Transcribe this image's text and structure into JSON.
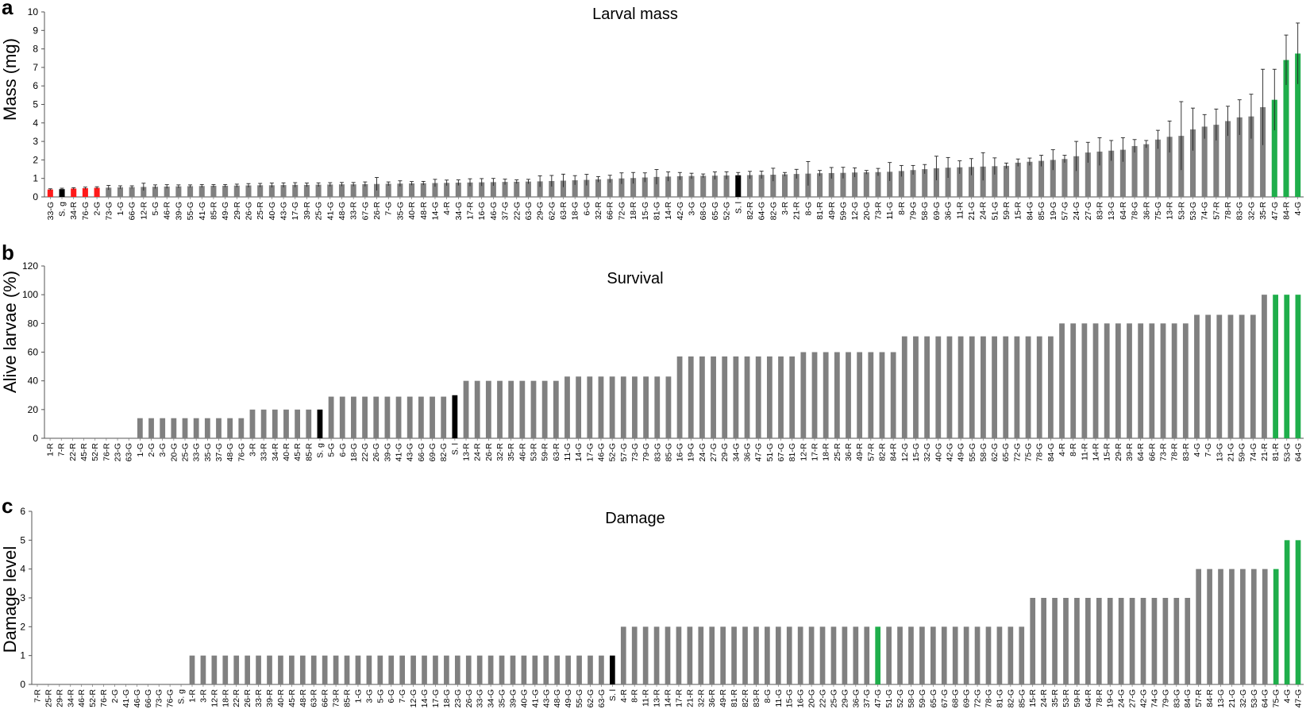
{
  "colors": {
    "default": "#808080",
    "red": "#ff1a1a",
    "black": "#000000",
    "green": "#1fae4b"
  },
  "panels": [
    {
      "letter": "a",
      "title": "Larval mass",
      "ylabel": "Mass (mg)",
      "chart_data": {
        "type": "bar",
        "title": "Larval mass",
        "ylabel": "Mass (mg)",
        "xlabel": "",
        "ylim": [
          0,
          10
        ],
        "yticks": [
          0,
          1,
          2,
          3,
          4,
          5,
          6,
          7,
          8,
          9,
          10
        ],
        "error_bars": true,
        "highlight": {
          "red": [
            "33-G",
            "34-R",
            "76-G",
            "2-G"
          ],
          "black": [
            "S. g",
            "S. l"
          ],
          "green": [
            "47-G",
            "84-R",
            "4-G"
          ]
        },
        "categories": [
          "33-G",
          "S. g",
          "34-R",
          "76-G",
          "2-G",
          "73-G",
          "1-G",
          "66-G",
          "12-R",
          "5-G",
          "46-R",
          "39-G",
          "55-G",
          "41-G",
          "85-R",
          "49-G",
          "29-R",
          "26-G",
          "25-R",
          "40-G",
          "43-G",
          "17-G",
          "39-R",
          "25-G",
          "41-G",
          "48-G",
          "33-R",
          "67-G",
          "26-R",
          "7-G",
          "35-G",
          "40-R",
          "48-R",
          "14-G",
          "4-R",
          "34-G",
          "17-R",
          "16-G",
          "46-G",
          "37-G",
          "22-G",
          "63-G",
          "29-G",
          "62-G",
          "63-R",
          "18-G",
          "6-G",
          "32-R",
          "66-R",
          "72-G",
          "18-R",
          "15-G",
          "81-G",
          "14-R",
          "42-G",
          "3-G",
          "68-G",
          "65-G",
          "52-G",
          "S. l",
          "82-R",
          "64-G",
          "82-G",
          "3-R",
          "21-R",
          "8-G",
          "81-R",
          "49-R",
          "59-G",
          "12-G",
          "20-G",
          "73-R",
          "11-G",
          "8-R",
          "79-G",
          "58-G",
          "69-G",
          "36-G",
          "11-R",
          "21-G",
          "24-R",
          "51-G",
          "59-R",
          "15-R",
          "84-G",
          "85-G",
          "19-G",
          "57-G",
          "24-G",
          "27-G",
          "83-R",
          "13-G",
          "64-R",
          "78-G",
          "36-R",
          "75-G",
          "13-R",
          "53-R",
          "53-G",
          "74-G",
          "57-R",
          "78-R",
          "83-G",
          "32-G",
          "35-R",
          "47-G",
          "84-R",
          "4-G"
        ],
        "values": [
          0.4,
          0.42,
          0.45,
          0.47,
          0.49,
          0.5,
          0.52,
          0.53,
          0.54,
          0.55,
          0.56,
          0.57,
          0.58,
          0.59,
          0.6,
          0.6,
          0.61,
          0.62,
          0.63,
          0.63,
          0.64,
          0.65,
          0.65,
          0.66,
          0.67,
          0.68,
          0.68,
          0.69,
          0.7,
          0.71,
          0.72,
          0.73,
          0.74,
          0.75,
          0.76,
          0.77,
          0.78,
          0.79,
          0.8,
          0.81,
          0.82,
          0.83,
          0.84,
          0.86,
          0.88,
          0.9,
          0.92,
          0.95,
          0.97,
          1.0,
          1.02,
          1.05,
          1.08,
          1.1,
          1.12,
          1.13,
          1.14,
          1.15,
          1.16,
          1.17,
          1.18,
          1.19,
          1.2,
          1.22,
          1.24,
          1.26,
          1.28,
          1.29,
          1.3,
          1.32,
          1.33,
          1.34,
          1.36,
          1.4,
          1.45,
          1.5,
          1.55,
          1.58,
          1.6,
          1.62,
          1.64,
          1.66,
          1.68,
          1.85,
          1.9,
          1.95,
          2.0,
          2.05,
          2.2,
          2.4,
          2.45,
          2.5,
          2.55,
          2.75,
          2.85,
          3.1,
          3.25,
          3.3,
          3.65,
          3.8,
          3.9,
          4.1,
          4.3,
          4.35,
          4.85,
          5.25,
          7.4,
          7.75
        ],
        "errors": [
          0.04,
          0.05,
          0.05,
          0.06,
          0.06,
          0.12,
          0.08,
          0.07,
          0.2,
          0.1,
          0.1,
          0.08,
          0.07,
          0.08,
          0.07,
          0.07,
          0.08,
          0.1,
          0.1,
          0.12,
          0.12,
          0.12,
          0.1,
          0.1,
          0.1,
          0.1,
          0.1,
          0.12,
          0.35,
          0.1,
          0.15,
          0.1,
          0.1,
          0.2,
          0.15,
          0.15,
          0.2,
          0.2,
          0.2,
          0.15,
          0.1,
          0.12,
          0.3,
          0.3,
          0.35,
          0.25,
          0.3,
          0.15,
          0.2,
          0.3,
          0.3,
          0.25,
          0.4,
          0.25,
          0.2,
          0.15,
          0.1,
          0.2,
          0.2,
          0.15,
          0.2,
          0.2,
          0.35,
          0.1,
          0.25,
          0.65,
          0.15,
          0.3,
          0.3,
          0.25,
          0.1,
          0.2,
          0.5,
          0.3,
          0.25,
          0.25,
          0.65,
          0.55,
          0.35,
          0.45,
          0.75,
          0.45,
          0.15,
          0.2,
          0.2,
          0.3,
          0.55,
          0.2,
          0.8,
          0.55,
          0.75,
          0.55,
          0.65,
          0.35,
          0.2,
          0.5,
          0.85,
          1.85,
          1.15,
          0.65,
          0.85,
          0.8,
          0.95,
          1.2,
          2.05,
          1.65,
          1.35,
          1.65
        ]
      }
    },
    {
      "letter": "b",
      "title": "Survival",
      "ylabel": "Alive larvae (%)",
      "chart_data": {
        "type": "bar",
        "title": "Survival",
        "ylabel": "Alive larvae (%)",
        "xlabel": "",
        "ylim": [
          0,
          120
        ],
        "yticks": [
          0,
          20,
          40,
          60,
          80,
          100,
          120
        ],
        "error_bars": false,
        "highlight": {
          "black": [
            "S. g",
            "S. l"
          ],
          "green": [
            "81-R",
            "53-G",
            "64-G"
          ]
        },
        "categories": [
          "1-R",
          "7-R",
          "22-R",
          "45-R",
          "52-R",
          "76-R",
          "23-G",
          "63-G",
          "1-G",
          "2-G",
          "3-G",
          "20-G",
          "25-G",
          "33-G",
          "35-G",
          "37-G",
          "48-G",
          "76-G",
          "3-R",
          "33-R",
          "34-R",
          "40-R",
          "45-R",
          "85-R",
          "S. g",
          "5-G",
          "6-G",
          "18-G",
          "22-G",
          "26-G",
          "39-G",
          "41-G",
          "43-G",
          "66-G",
          "69-G",
          "82-G",
          "S. l",
          "13-R",
          "24-R",
          "26-R",
          "32-R",
          "35-R",
          "46-R",
          "53-R",
          "59-R",
          "63-R",
          "11-G",
          "14-G",
          "17-G",
          "46-G",
          "52-G",
          "57-G",
          "73-G",
          "79-G",
          "83-G",
          "85-G",
          "16-G",
          "19-G",
          "24-G",
          "27-G",
          "29-G",
          "34-G",
          "36-G",
          "47-G",
          "51-G",
          "67-G",
          "81-G",
          "12-R",
          "17-R",
          "18-R",
          "25-R",
          "36-R",
          "49-R",
          "57-R",
          "82-R",
          "84-R",
          "12-G",
          "15-G",
          "32-G",
          "40-G",
          "42-G",
          "49-G",
          "55-G",
          "58-G",
          "62-G",
          "65-G",
          "72-G",
          "75-G",
          "78-G",
          "84-G",
          "4-R",
          "8-R",
          "11-R",
          "14-R",
          "15-R",
          "29-R",
          "39-R",
          "64-R",
          "66-R",
          "73-R",
          "78-R",
          "83-R",
          "4-G",
          "7-G",
          "13-G",
          "21-G",
          "59-G",
          "74-G",
          "21-R",
          "81-R",
          "53-G",
          "64-G"
        ],
        "values": [
          0,
          0,
          0,
          0,
          0,
          0,
          0,
          0,
          14,
          14,
          14,
          14,
          14,
          14,
          14,
          14,
          14,
          14,
          20,
          20,
          20,
          20,
          20,
          20,
          20,
          29,
          29,
          29,
          29,
          29,
          29,
          29,
          29,
          29,
          29,
          29,
          30,
          40,
          40,
          40,
          40,
          40,
          40,
          40,
          40,
          40,
          43,
          43,
          43,
          43,
          43,
          43,
          43,
          43,
          43,
          43,
          57,
          57,
          57,
          57,
          57,
          57,
          57,
          57,
          57,
          57,
          57,
          60,
          60,
          60,
          60,
          60,
          60,
          60,
          60,
          60,
          71,
          71,
          71,
          71,
          71,
          71,
          71,
          71,
          71,
          71,
          71,
          71,
          71,
          71,
          80,
          80,
          80,
          80,
          80,
          80,
          80,
          80,
          80,
          80,
          80,
          80,
          86,
          86,
          86,
          86,
          86,
          86,
          100,
          100,
          100,
          100
        ]
      }
    },
    {
      "letter": "c",
      "title": "Damage",
      "ylabel": "Damage level",
      "chart_data": {
        "type": "bar",
        "title": "Damage",
        "ylabel": "Damage level",
        "xlabel": "",
        "ylim": [
          0,
          6
        ],
        "yticks": [
          0,
          1,
          2,
          3,
          4,
          5,
          6
        ],
        "error_bars": false,
        "highlight": {
          "black": [
            "S. g",
            "S. l"
          ],
          "green": [
            "75-G",
            "4-G",
            "47-G"
          ]
        },
        "categories": [
          "7-R",
          "25-R",
          "29-R",
          "34-R",
          "46-R",
          "52-R",
          "76-R",
          "2-G",
          "41-G",
          "46-G",
          "66-G",
          "73-G",
          "76-G",
          "S. g",
          "1-R",
          "3-R",
          "12-R",
          "18-R",
          "22-R",
          "26-R",
          "33-R",
          "39-R",
          "40-R",
          "45-R",
          "48-R",
          "63-R",
          "66-R",
          "73-R",
          "85-R",
          "1-G",
          "3-G",
          "5-G",
          "6-G",
          "7-G",
          "12-G",
          "14-G",
          "17-G",
          "18-G",
          "23-G",
          "26-G",
          "33-G",
          "34-G",
          "35-G",
          "39-G",
          "40-G",
          "41-G",
          "43-G",
          "48-G",
          "49-G",
          "55-G",
          "62-G",
          "63-G",
          "S. l",
          "4-R",
          "8-R",
          "11-R",
          "13-R",
          "14-R",
          "17-R",
          "21-R",
          "32-R",
          "36-R",
          "49-R",
          "81-R",
          "82-R",
          "83-R",
          "8-G",
          "11-G",
          "15-G",
          "16-G",
          "20-G",
          "22-G",
          "25-G",
          "29-G",
          "36-G",
          "37-G",
          "47-G",
          "51-G",
          "52-G",
          "58-G",
          "59-G",
          "65-G",
          "67-G",
          "68-G",
          "69-G",
          "72-G",
          "78-G",
          "81-G",
          "82-G",
          "85-G",
          "15-R",
          "24-R",
          "35-R",
          "53-R",
          "59-R",
          "64-R",
          "78-R",
          "19-G",
          "24-G",
          "27-G",
          "42-G",
          "74-G",
          "79-G",
          "83-G",
          "84-G",
          "57-R",
          "84-R",
          "13-G",
          "21-G",
          "32-G",
          "53-G",
          "64-G",
          "75-G",
          "4-G",
          "47-G"
        ],
        "values": [
          0,
          0,
          0,
          0,
          0,
          0,
          0,
          0,
          0,
          0,
          0,
          0,
          0,
          0,
          1,
          1,
          1,
          1,
          1,
          1,
          1,
          1,
          1,
          1,
          1,
          1,
          1,
          1,
          1,
          1,
          1,
          1,
          1,
          1,
          1,
          1,
          1,
          1,
          1,
          1,
          1,
          1,
          1,
          1,
          1,
          1,
          1,
          1,
          1,
          1,
          1,
          1,
          1,
          2,
          2,
          2,
          2,
          2,
          2,
          2,
          2,
          2,
          2,
          2,
          2,
          2,
          2,
          2,
          2,
          2,
          2,
          2,
          2,
          2,
          2,
          2,
          2,
          2,
          2,
          2,
          2,
          2,
          2,
          2,
          2,
          2,
          2,
          2,
          2,
          2,
          3,
          3,
          3,
          3,
          3,
          3,
          3,
          3,
          3,
          3,
          3,
          3,
          3,
          3,
          3,
          4,
          4,
          4,
          4,
          4,
          4,
          4,
          4,
          5,
          5
        ]
      }
    }
  ]
}
